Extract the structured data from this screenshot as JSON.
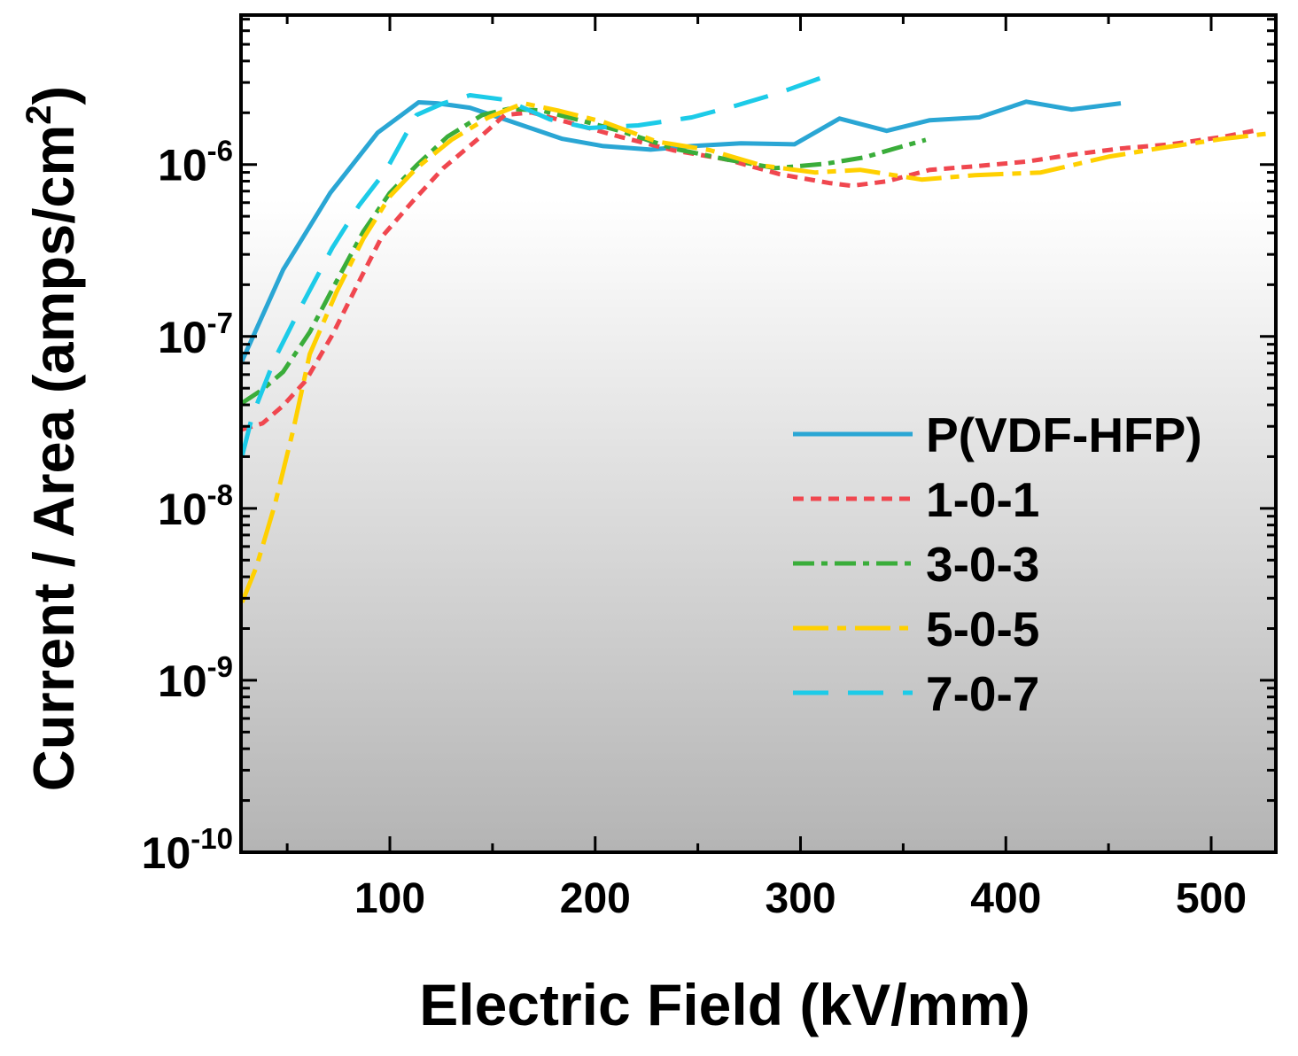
{
  "style": {
    "plot_bg_top": "#ffffff",
    "plot_bg_bottom": "#b4b4b4",
    "axis_color": "#000000"
  },
  "chart_data": {
    "type": "line",
    "xlabel": "Electric Field (kV/mm)",
    "ylabel": {
      "main": "Current / Area (amps/cm",
      "sup": "2",
      "end": ")"
    },
    "xlim": [
      27.5,
      531.5
    ],
    "ylim": [
      1e-10,
      7.4e-06
    ],
    "yscale": "log",
    "grid": false,
    "legend_position": "center-right",
    "xticks": [
      100,
      200,
      300,
      400,
      500
    ],
    "xtick_labels": [
      "100",
      "200",
      "300",
      "400",
      "500"
    ],
    "yticks": [
      1e-10,
      1e-09,
      1e-08,
      1e-07,
      1e-06
    ],
    "ytick_labels": [
      {
        "base": "10",
        "exp": "-10"
      },
      {
        "base": "10",
        "exp": "-9"
      },
      {
        "base": "10",
        "exp": "-8"
      },
      {
        "base": "10",
        "exp": "-7"
      },
      {
        "base": "10",
        "exp": "-6"
      }
    ],
    "series": [
      {
        "name": "P(VDF-HFP)",
        "color": "#2aa6d4",
        "line_style": "solid",
        "x": [
          28,
          48,
          71,
          94,
          114,
          123,
          139,
          156,
          184,
          204,
          227,
          247,
          271,
          297,
          319,
          342,
          363,
          387,
          410,
          432,
          456
        ],
        "y": [
          7.2e-08,
          2.44e-07,
          6.84e-07,
          1.53e-06,
          2.3e-06,
          2.27e-06,
          2.14e-06,
          1.83e-06,
          1.41e-06,
          1.28e-06,
          1.22e-06,
          1.28e-06,
          1.33e-06,
          1.31e-06,
          1.85e-06,
          1.57e-06,
          1.81e-06,
          1.88e-06,
          2.32e-06,
          2.09e-06,
          2.27e-06
        ]
      },
      {
        "name": "1-0-1",
        "color": "#f0474f",
        "line_style": "short-dash",
        "x": [
          28,
          38,
          48,
          59,
          72,
          85,
          96,
          111,
          126,
          143,
          156,
          169,
          186,
          212,
          238,
          264,
          290,
          314,
          325,
          342,
          363,
          385,
          410,
          432,
          456,
          480,
          506,
          523
        ],
        "y": [
          2.88e-08,
          3.12e-08,
          3.96e-08,
          5.52e-08,
          1.02e-07,
          2.09e-07,
          3.78e-07,
          6.08e-07,
          9.53e-07,
          1.41e-06,
          1.94e-06,
          2.01e-06,
          1.77e-06,
          1.45e-06,
          1.21e-06,
          1.07e-06,
          8.78e-07,
          7.8e-07,
          7.52e-07,
          7.98e-07,
          9.31e-07,
          9.77e-07,
          1.04e-06,
          1.14e-06,
          1.24e-06,
          1.31e-06,
          1.45e-06,
          1.59e-06
        ]
      },
      {
        "name": "3-0-3",
        "color": "#3aad3a",
        "line_style": "dash-dot",
        "x": [
          28,
          38,
          48,
          61,
          74,
          87,
          100,
          113,
          128,
          145,
          158,
          174,
          191,
          212,
          238,
          264,
          288,
          312,
          331,
          346,
          361
        ],
        "y": [
          4.1e-08,
          4.91e-08,
          6.22e-08,
          1.06e-07,
          2.09e-07,
          4.06e-07,
          6.84e-07,
          9.88e-07,
          1.45e-06,
          1.94e-06,
          2.11e-06,
          2.06e-06,
          1.83e-06,
          1.57e-06,
          1.24e-06,
          1.07e-06,
          9.53e-07,
          1.01e-06,
          1.1e-06,
          1.24e-06,
          1.39e-06
        ]
      },
      {
        "name": "5-0-5",
        "color": "#ffd000",
        "line_style": "long-dash-dot",
        "x": [
          28,
          35,
          44,
          53,
          61,
          74,
          87,
          100,
          113,
          130,
          148,
          165,
          182,
          204,
          230,
          256,
          281,
          307,
          329,
          359,
          385,
          417,
          450,
          476,
          506,
          531
        ],
        "y": [
          2.84e-09,
          4.57e-09,
          1.05e-08,
          2.88e-08,
          7.89e-08,
          1.81e-07,
          3.69e-07,
          6.52e-07,
          9.53e-07,
          1.39e-06,
          1.88e-06,
          2.27e-06,
          2.06e-06,
          1.77e-06,
          1.36e-06,
          1.21e-06,
          9.88e-07,
          8.99e-07,
          9.31e-07,
          8.17e-07,
          8.67e-07,
          8.99e-07,
          1.11e-06,
          1.25e-06,
          1.41e-06,
          1.53e-06
        ]
      },
      {
        "name": "7-0-7",
        "color": "#1ccbe8",
        "line_style": "long-dash",
        "x": [
          28,
          33,
          44,
          57,
          72,
          85,
          98,
          113,
          126,
          139,
          156,
          178,
          197,
          221,
          247,
          268,
          290,
          314
        ],
        "y": [
          2.01e-08,
          3.44e-08,
          7.43e-08,
          1.51e-07,
          3.28e-07,
          5.79e-07,
          9.2e-07,
          1.94e-06,
          2.27e-06,
          2.53e-06,
          2.38e-06,
          1.83e-06,
          1.63e-06,
          1.69e-06,
          1.88e-06,
          2.19e-06,
          2.62e-06,
          3.32e-06
        ]
      }
    ]
  }
}
